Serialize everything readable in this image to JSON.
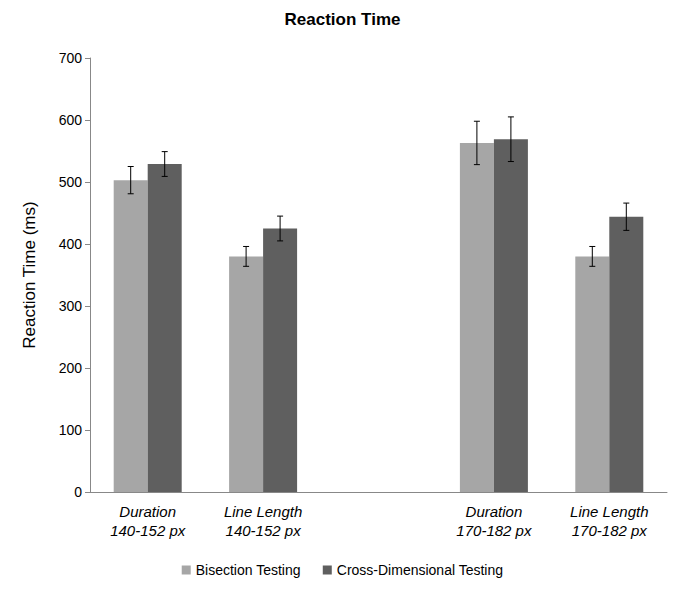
{
  "chart_data": {
    "type": "bar",
    "title": "Reaction Time",
    "y_label": "Reaction Time (ms)",
    "categories": [
      "Duration\n140-152 px",
      "Line Length\n140-152 px",
      null,
      "Duration\n170-182 px",
      "Line Length\n170-182 px"
    ],
    "series": [
      {
        "name": "Bisection Testing",
        "color": "#a6a6a6",
        "values": [
          503,
          380,
          null,
          563,
          380
        ],
        "errors": [
          22,
          16,
          null,
          35,
          16
        ]
      },
      {
        "name": "Cross-Dimensional Testing",
        "color": "#5f5f5f",
        "values": [
          529,
          425,
          null,
          569,
          444
        ],
        "errors": [
          20,
          20,
          null,
          36,
          22
        ]
      }
    ],
    "ylim": [
      0,
      700
    ],
    "yticks": [
      0,
      100,
      200,
      300,
      400,
      500,
      600,
      700
    ],
    "grid": false,
    "legend": "bottom"
  }
}
